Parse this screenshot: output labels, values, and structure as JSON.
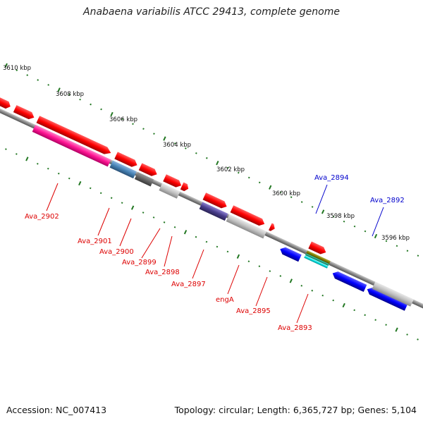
{
  "title": "Anabaena variabilis ATCC 29413, complete genome",
  "footer": {
    "accession": "Accession: NC_007413",
    "summary": "Topology: circular; Length: 6,365,727 bp; Genes: 5,104"
  },
  "ticks": [
    "3610 kbp",
    "3608 kbp",
    "3606 kbp",
    "3604 kbp",
    "3602 kbp",
    "3600 kbp",
    "3598 kbp",
    "3596 kbp"
  ],
  "gene_labels": [
    "Ava_2894",
    "Ava_2892",
    "Ava_2902",
    "Ava_2901",
    "Ava_2900",
    "Ava_2899",
    "Ava_2898",
    "Ava_2897",
    "engA",
    "Ava_2895",
    "Ava_2893"
  ],
  "colors": {
    "forward_gene": "#ff0000",
    "reverse_gene": "#0000ff",
    "backbone": "#888888",
    "tick_dots": "#227722"
  }
}
